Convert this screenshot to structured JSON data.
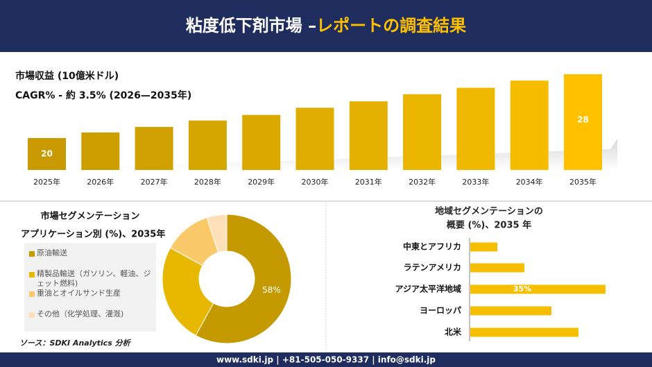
{
  "header": {
    "title": "粘度低下剤市場 –",
    "title_highlight": "レポートの調査結果"
  },
  "chart_data": [
    {
      "type": "bar",
      "title": "市場収益 (10億米ドル)",
      "subtitle": "CAGR% - 約 3.5% (2026—2035年)",
      "categories": [
        "2025年",
        "2026年",
        "2027年",
        "2028年",
        "2029年",
        "2030年",
        "2031年",
        "2032年",
        "2033年",
        "2034年",
        "2035年"
      ],
      "values": [
        20,
        20.7,
        21.4,
        22.2,
        22.9,
        23.8,
        24.6,
        25.5,
        26.3,
        27.2,
        28
      ],
      "value_labels": [
        "20",
        null,
        null,
        null,
        null,
        null,
        null,
        null,
        null,
        null,
        "28"
      ],
      "colors": [
        "#c89a00",
        "#cc9e00",
        "#d0a100",
        "#d5a500",
        "#daa900",
        "#dfad00",
        "#e4b100",
        "#e9b500",
        "#eeb900",
        "#f6bd00",
        "#ffc000"
      ]
    },
    {
      "type": "donut",
      "title": "市場セグメンテーション",
      "subtitle": "アプリケーション別 (%)、2035年",
      "categories": [
        "原油輸送",
        "精製品輸送（ガソリン、軽油、ジェット燃料)",
        "重油とオイルサンド生産",
        "その他（化学処理、灌漑)"
      ],
      "values": [
        58,
        25,
        12,
        5
      ],
      "value_labels": [
        "58%",
        null,
        null,
        null
      ],
      "colors": [
        "#c49a00",
        "#e8b800",
        "#f9c96a",
        "#fde0b8"
      ]
    },
    {
      "type": "hbar",
      "title": "地域セグメンテーションの",
      "subtitle": "概要 (%)、2035 年",
      "categories": [
        "中東とアフリカ",
        "ラテンアメリカ",
        "アジア太平洋地域",
        "ヨーロッパ",
        "北米"
      ],
      "values": [
        7,
        14,
        35,
        21,
        28
      ],
      "value_labels": [
        null,
        null,
        "35%",
        null,
        null
      ],
      "color": "#f5be00"
    }
  ],
  "source": "ソース：SDKI Analytics 分析",
  "footer": "www.sdki.jp | +81-505-050-9337 | info@sdki.jp"
}
